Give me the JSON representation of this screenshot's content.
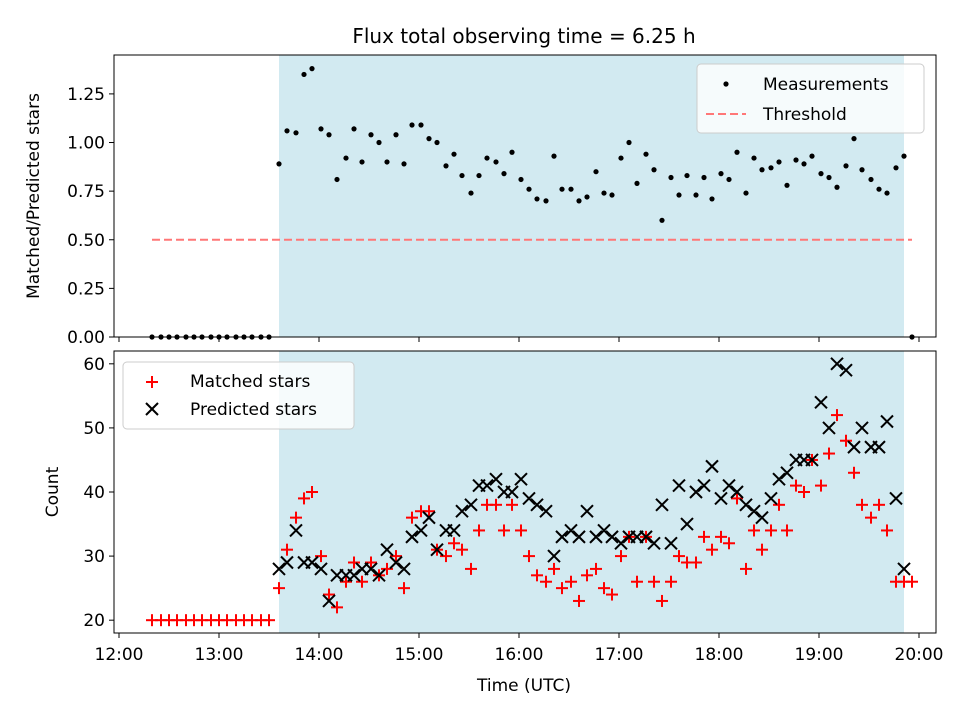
{
  "chart_data": [
    {
      "type": "scatter",
      "title": "Flux total observing time = 6.25 h",
      "xlabel": "",
      "ylabel": "Matched/Predicted stars",
      "ylim": [
        0,
        1.45
      ],
      "yticks": [
        "0.00",
        "0.25",
        "0.50",
        "0.75",
        "1.00",
        "1.25"
      ],
      "shaded_span": {
        "start_hour": 13.6,
        "end_hour": 19.85,
        "color": "#add8e6"
      },
      "legend_placement": "top-right",
      "series": [
        {
          "name": "Measurements",
          "marker": "dot",
          "color": "#000000",
          "x_hours": [
            12.33,
            12.42,
            12.5,
            12.58,
            12.67,
            12.75,
            12.83,
            12.92,
            13.0,
            13.08,
            13.17,
            13.25,
            13.33,
            13.42,
            13.5,
            13.6,
            13.68,
            13.77,
            13.85,
            13.93,
            14.02,
            14.1,
            14.18,
            14.27,
            14.35,
            14.43,
            14.52,
            14.6,
            14.68,
            14.77,
            14.85,
            14.93,
            15.02,
            15.1,
            15.18,
            15.27,
            15.35,
            15.43,
            15.52,
            15.6,
            15.68,
            15.77,
            15.85,
            15.93,
            16.02,
            16.1,
            16.18,
            16.27,
            16.35,
            16.43,
            16.52,
            16.6,
            16.68,
            16.77,
            16.85,
            16.93,
            17.02,
            17.1,
            17.18,
            17.27,
            17.35,
            17.43,
            17.52,
            17.6,
            17.68,
            17.77,
            17.85,
            17.93,
            18.02,
            18.1,
            18.18,
            18.27,
            18.35,
            18.43,
            18.52,
            18.6,
            18.68,
            18.77,
            18.85,
            18.93,
            19.02,
            19.1,
            19.18,
            19.27,
            19.35,
            19.43,
            19.52,
            19.6,
            19.68,
            19.77,
            19.85,
            19.93
          ],
          "y": [
            0,
            0,
            0,
            0,
            0,
            0,
            0,
            0,
            0,
            0,
            0,
            0,
            0,
            0,
            0,
            0.89,
            1.06,
            1.05,
            1.35,
            1.38,
            1.07,
            1.04,
            0.81,
            0.92,
            1.07,
            0.9,
            1.04,
            1.0,
            0.9,
            1.04,
            0.89,
            1.09,
            1.09,
            1.02,
            1.0,
            0.88,
            0.94,
            0.83,
            0.74,
            0.83,
            0.92,
            0.9,
            0.84,
            0.95,
            0.81,
            0.76,
            0.71,
            0.7,
            0.93,
            0.76,
            0.76,
            0.7,
            0.72,
            0.85,
            0.74,
            0.73,
            0.92,
            1.0,
            0.79,
            0.94,
            0.86,
            0.6,
            0.82,
            0.73,
            0.83,
            0.73,
            0.82,
            0.71,
            0.84,
            0.81,
            0.95,
            0.74,
            0.92,
            0.86,
            0.87,
            0.9,
            0.78,
            0.91,
            0.89,
            0.93,
            0.84,
            0.82,
            0.77,
            0.88,
            1.02,
            0.86,
            0.81,
            0.76,
            0.74,
            0.87,
            0.93,
            0.0
          ]
        },
        {
          "name": "Threshold",
          "marker": "dashed-line",
          "color": "#ff7777",
          "x_hours": [
            12.33,
            19.93
          ],
          "y": [
            0.5,
            0.5
          ]
        }
      ]
    },
    {
      "type": "scatter",
      "title": "",
      "xlabel": "Time (UTC)",
      "ylabel": "Count",
      "ylim": [
        18,
        62
      ],
      "yticks": [
        "20",
        "30",
        "40",
        "50",
        "60"
      ],
      "xlim_hours": [
        11.95,
        20.17
      ],
      "xticks": [
        "12:00",
        "13:00",
        "14:00",
        "15:00",
        "16:00",
        "17:00",
        "18:00",
        "19:00",
        "20:00"
      ],
      "shaded_span": {
        "start_hour": 13.6,
        "end_hour": 19.85,
        "color": "#add8e6"
      },
      "legend_placement": "top-left",
      "series": [
        {
          "name": "Matched stars",
          "marker": "plus",
          "color": "#ff0000",
          "x_hours": [
            12.33,
            12.42,
            12.5,
            12.58,
            12.67,
            12.75,
            12.83,
            12.92,
            13.0,
            13.08,
            13.17,
            13.25,
            13.33,
            13.42,
            13.5,
            13.6,
            13.68,
            13.77,
            13.85,
            13.93,
            14.02,
            14.1,
            14.18,
            14.27,
            14.35,
            14.43,
            14.52,
            14.6,
            14.68,
            14.77,
            14.85,
            14.93,
            15.02,
            15.1,
            15.18,
            15.27,
            15.35,
            15.43,
            15.52,
            15.6,
            15.68,
            15.77,
            15.85,
            15.93,
            16.02,
            16.1,
            16.18,
            16.27,
            16.35,
            16.43,
            16.52,
            16.6,
            16.68,
            16.77,
            16.85,
            16.93,
            17.02,
            17.1,
            17.18,
            17.27,
            17.35,
            17.43,
            17.52,
            17.6,
            17.68,
            17.77,
            17.85,
            17.93,
            18.02,
            18.1,
            18.18,
            18.27,
            18.35,
            18.43,
            18.52,
            18.6,
            18.68,
            18.77,
            18.85,
            18.93,
            19.02,
            19.1,
            19.18,
            19.27,
            19.35,
            19.43,
            19.52,
            19.6,
            19.68,
            19.77,
            19.85,
            19.93
          ],
          "y": [
            20,
            20,
            20,
            20,
            20,
            20,
            20,
            20,
            20,
            20,
            20,
            20,
            20,
            20,
            20,
            25,
            31,
            36,
            39,
            40,
            30,
            24,
            22,
            26,
            29,
            26,
            29,
            27,
            28,
            30,
            25,
            36,
            37,
            37,
            31,
            30,
            32,
            31,
            28,
            34,
            38,
            38,
            34,
            38,
            34,
            30,
            27,
            26,
            28,
            25,
            26,
            23,
            27,
            28,
            25,
            24,
            30,
            33,
            26,
            33,
            26,
            23,
            26,
            30,
            29,
            29,
            33,
            31,
            33,
            32,
            39,
            28,
            34,
            31,
            34,
            38,
            34,
            41,
            40,
            45,
            41,
            46,
            52,
            48,
            43,
            38,
            36,
            38,
            34,
            26,
            26,
            26
          ]
        },
        {
          "name": "Predicted stars",
          "marker": "x",
          "color": "#000000",
          "x_hours": [
            13.6,
            13.68,
            13.77,
            13.85,
            13.93,
            14.02,
            14.1,
            14.18,
            14.27,
            14.35,
            14.43,
            14.52,
            14.6,
            14.68,
            14.77,
            14.85,
            14.93,
            15.02,
            15.1,
            15.18,
            15.27,
            15.35,
            15.43,
            15.52,
            15.6,
            15.68,
            15.77,
            15.85,
            15.93,
            16.02,
            16.1,
            16.18,
            16.27,
            16.35,
            16.43,
            16.52,
            16.6,
            16.68,
            16.77,
            16.85,
            16.93,
            17.02,
            17.1,
            17.18,
            17.27,
            17.35,
            17.43,
            17.52,
            17.6,
            17.68,
            17.77,
            17.85,
            17.93,
            18.02,
            18.1,
            18.18,
            18.27,
            18.35,
            18.43,
            18.52,
            18.6,
            18.68,
            18.77,
            18.85,
            18.93,
            19.02,
            19.1,
            19.18,
            19.27,
            19.35,
            19.43,
            19.52,
            19.6,
            19.68,
            19.77,
            19.85
          ],
          "y": [
            28,
            29,
            34,
            29,
            29,
            28,
            23,
            27,
            27,
            27,
            28,
            28,
            27,
            31,
            29,
            28,
            33,
            34,
            36,
            31,
            34,
            34,
            37,
            38,
            41,
            41,
            42,
            40,
            40,
            42,
            39,
            38,
            37,
            30,
            33,
            34,
            33,
            37,
            33,
            34,
            33,
            32,
            33,
            33,
            33,
            32,
            38,
            32,
            41,
            35,
            40,
            41,
            44,
            39,
            41,
            40,
            38,
            37,
            36,
            39,
            42,
            43,
            45,
            45,
            45,
            54,
            50,
            60,
            59,
            47,
            50,
            47,
            47,
            51,
            39,
            28
          ]
        }
      ]
    }
  ]
}
